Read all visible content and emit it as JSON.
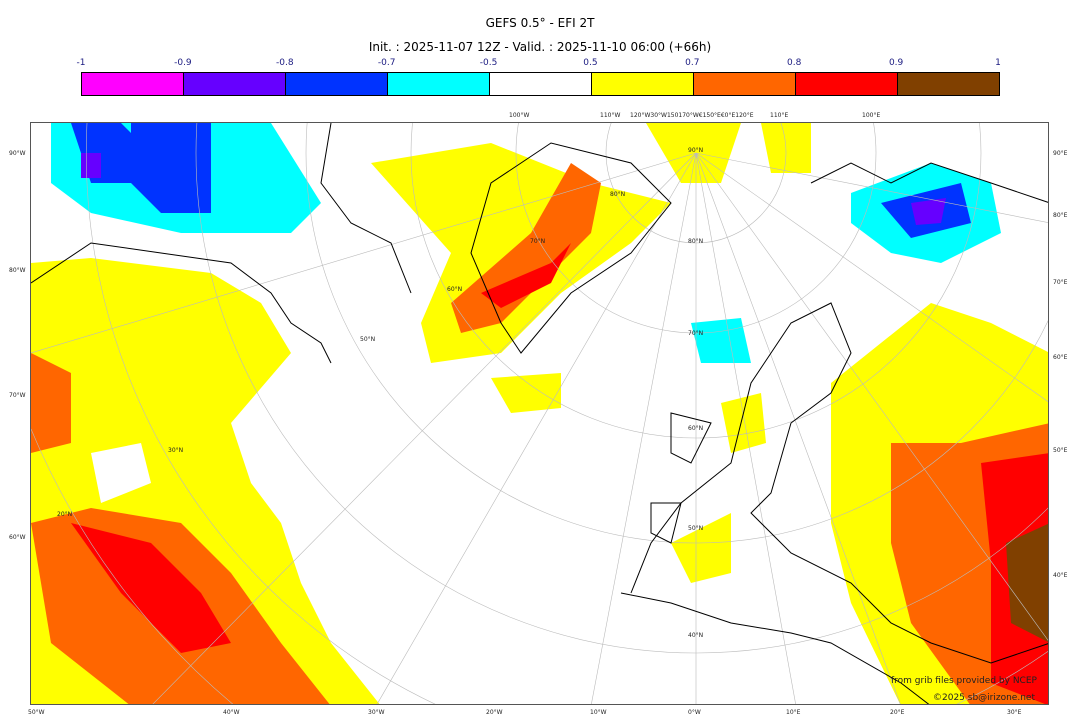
{
  "title": "GEFS 0.5° - EFI 2T",
  "subtitle": "Init. : 2025-11-07 12Z - Valid. : 2025-11-10 06:00 (+66h)",
  "colorbar": {
    "ticks": [
      "-1",
      "-0.9",
      "-0.8",
      "-0.7",
      "-0.5",
      "0.5",
      "0.7",
      "0.8",
      "0.9",
      "1"
    ],
    "colors": [
      "#ff00ff",
      "#6600ff",
      "#0033ff",
      "#00ffff",
      "#ffffff",
      "#ffff00",
      "#ff6600",
      "#ff0000",
      "#804000"
    ]
  },
  "map": {
    "top_labels": [
      "100°W",
      "110°W",
      "120°W30°W150170°W€150°E€0°E120°E",
      "110°E",
      "100°E"
    ],
    "left_labels": [
      "90°W",
      "80°W",
      "70°W",
      "60°W"
    ],
    "right_labels": [
      "90°E",
      "80°E",
      "70°E",
      "60°E",
      "50°E",
      "40°E"
    ],
    "bottom_labels": [
      "50°W",
      "40°W",
      "30°W",
      "20°W",
      "10°W",
      "0°W",
      "10°E",
      "20°E",
      "30°E"
    ],
    "lat_labels": [
      "90°N",
      "80°N",
      "70°N",
      "60°N",
      "50°N",
      "40°N",
      "30°N",
      "20°N"
    ],
    "other_labels": [
      "80°N",
      "70°N",
      "60°N",
      "50°N",
      "40°N",
      "30°N",
      "20°N",
      "70°N",
      "60°N",
      "80°N",
      "70°N",
      "60°N",
      "50°N"
    ]
  },
  "credits": {
    "line1": "from grib files provided by NCEP",
    "line2": "©2025 sb@irizone.net"
  }
}
